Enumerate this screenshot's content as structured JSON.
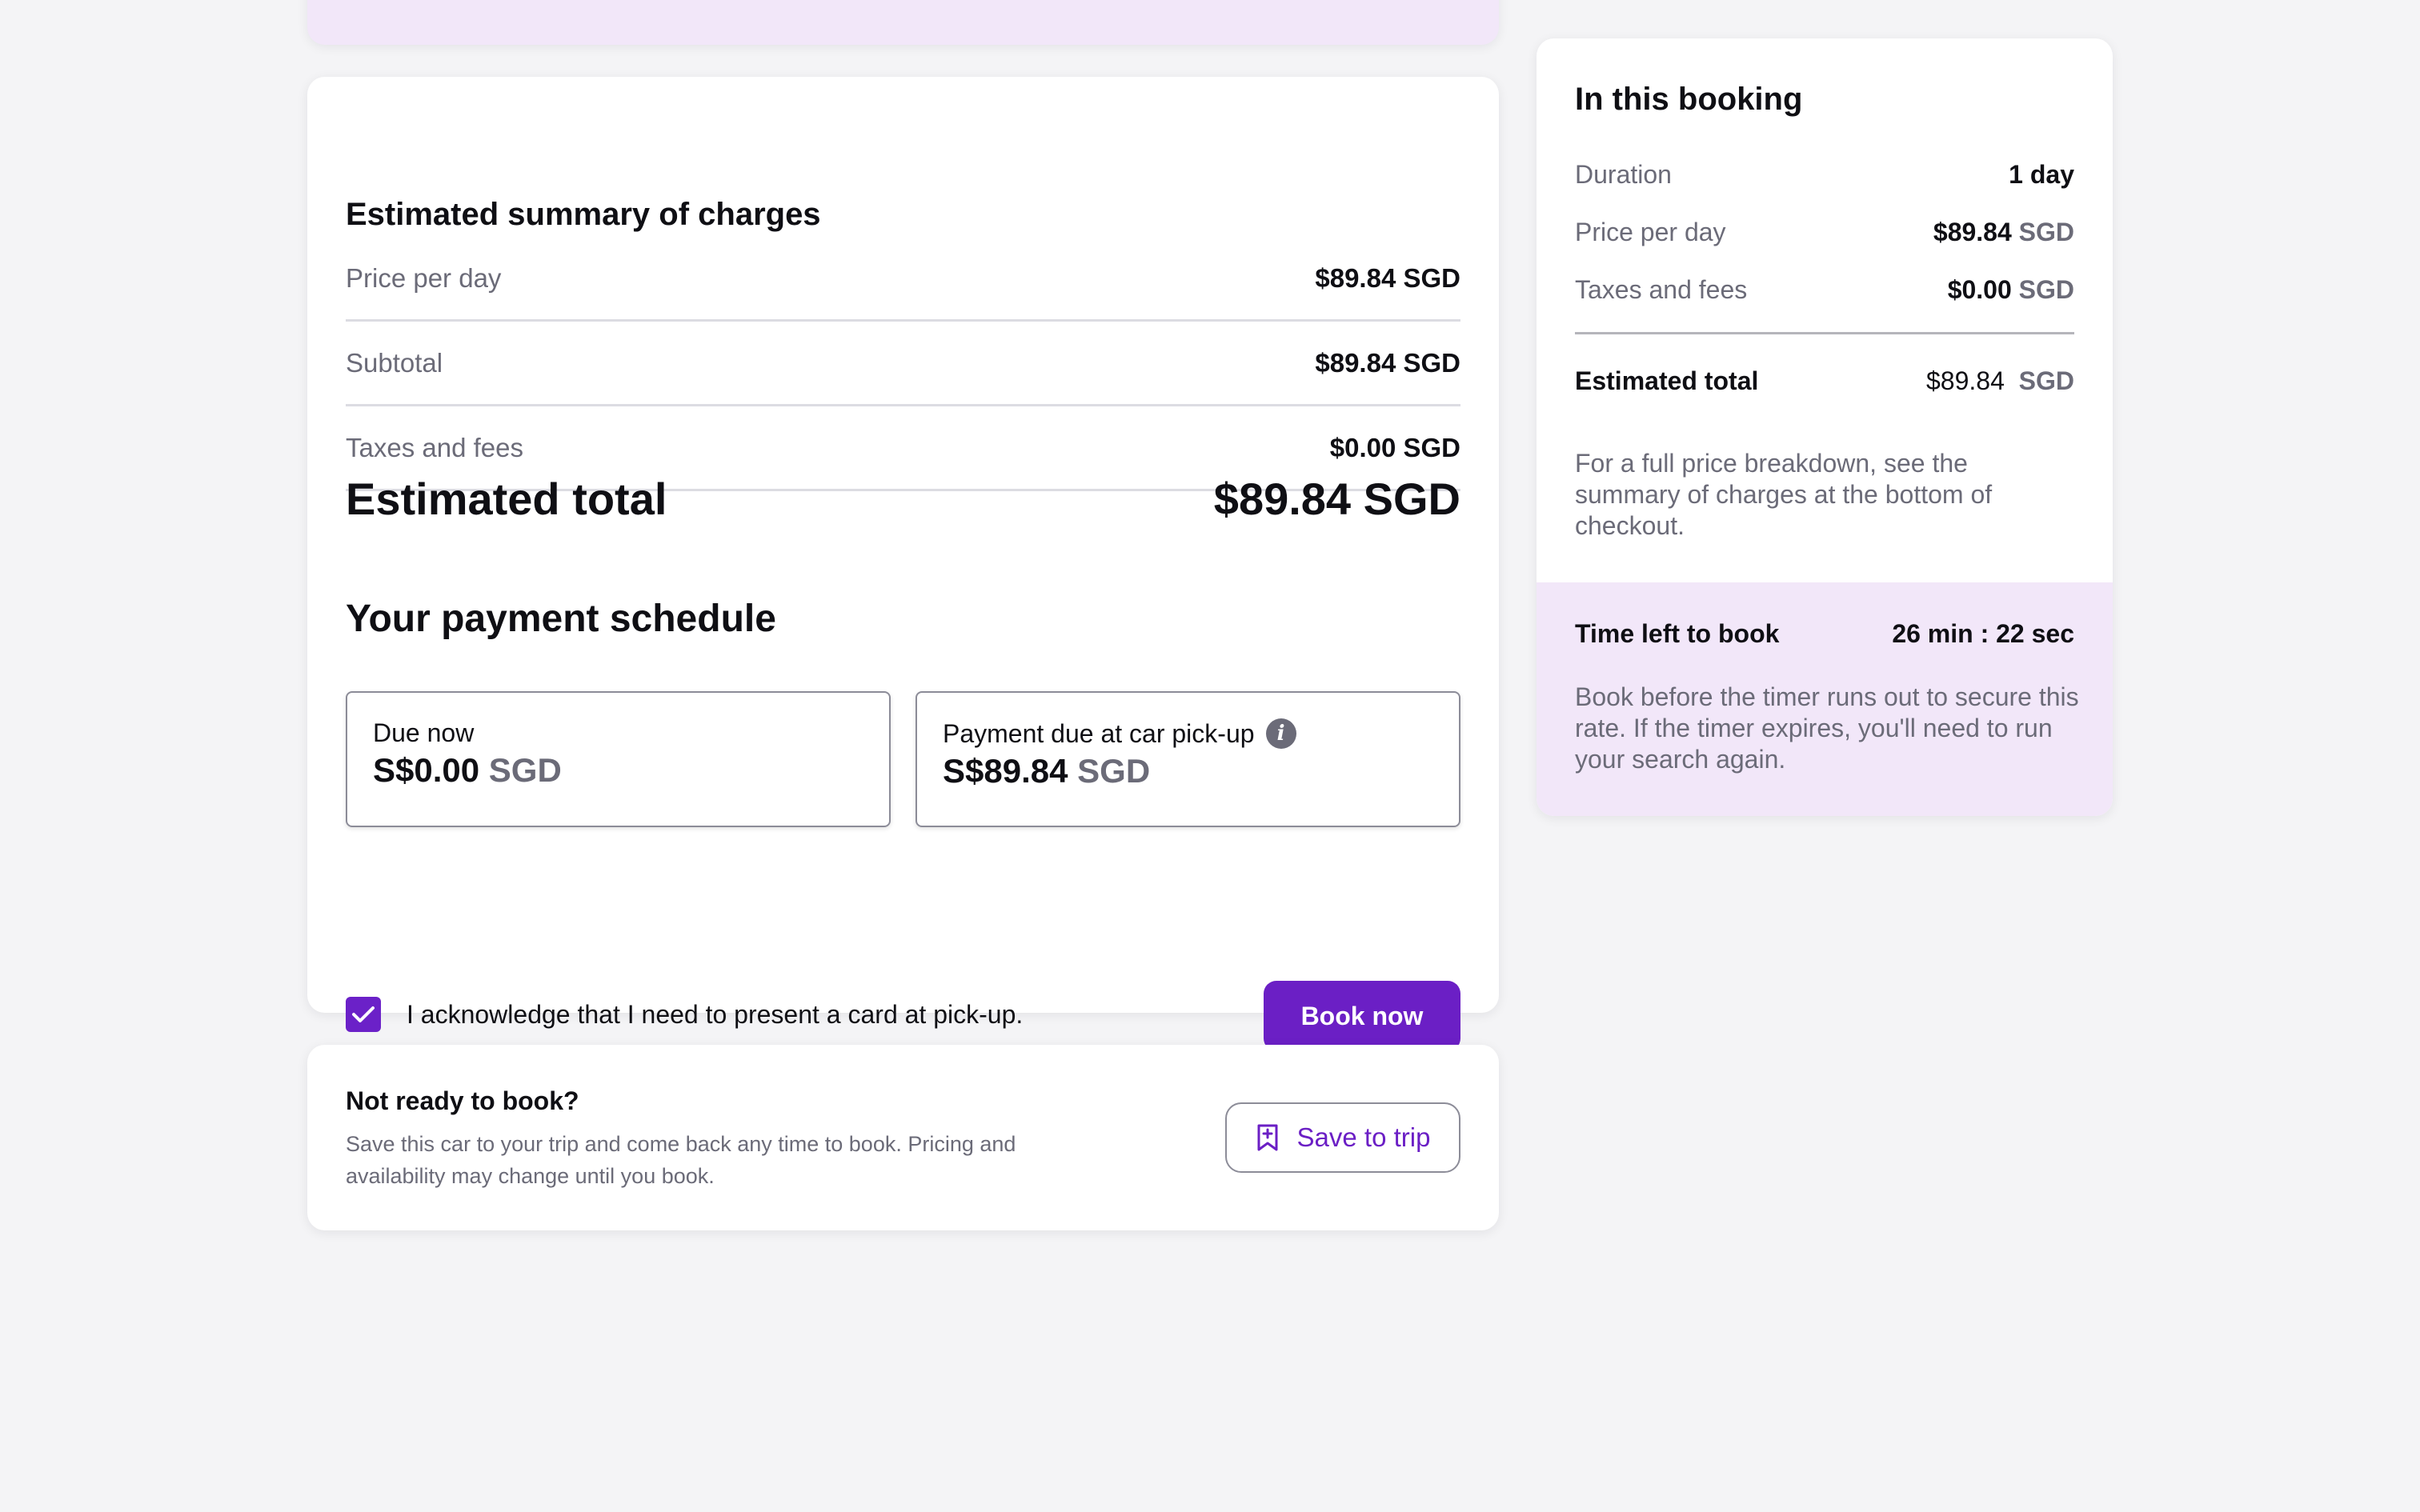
{
  "charges": {
    "title": "Estimated summary of charges",
    "rows": [
      {
        "label": "Price per day",
        "value": "$89.84 SGD"
      },
      {
        "label": "Subtotal",
        "value": "$89.84 SGD"
      },
      {
        "label": "Taxes and fees",
        "value": "$0.00 SGD"
      }
    ],
    "total_label": "Estimated total",
    "total_value": "$89.84 SGD"
  },
  "schedule": {
    "title": "Your payment schedule",
    "due_now": {
      "label": "Due now",
      "amount": "S$0.00",
      "currency": "SGD"
    },
    "due_pickup": {
      "label": "Payment due at car pick-up",
      "amount": "S$89.84",
      "currency": "SGD"
    }
  },
  "acknowledge": {
    "text": "I acknowledge that I need to present a card at pick-up.",
    "checked": true
  },
  "book_button": "Book now",
  "not_ready": {
    "title": "Not ready to book?",
    "description": "Save this car to your trip and come back any time to book. Pricing and availability may change until you book.",
    "button": "Save to trip"
  },
  "booking": {
    "title": "In this booking",
    "duration_label": "Duration",
    "duration_value": "1 day",
    "price_label": "Price per day",
    "price_amount": "$89.84",
    "price_currency": "SGD",
    "taxes_label": "Taxes and fees",
    "taxes_amount": "$0.00",
    "taxes_currency": "SGD",
    "total_label": "Estimated total",
    "total_amount": "$89.84",
    "total_currency": "SGD",
    "note": "For a full price breakdown, see the summary of charges at the bottom of checkout."
  },
  "timer": {
    "label": "Time left to book",
    "value": "26 min : 22 sec",
    "note": "Book before the timer runs out to secure this rate. If the timer expires, you'll need to run your search again."
  },
  "colors": {
    "accent": "#6b1fc5",
    "highlight": "#f2e7f9",
    "muted": "#6b6b78"
  }
}
